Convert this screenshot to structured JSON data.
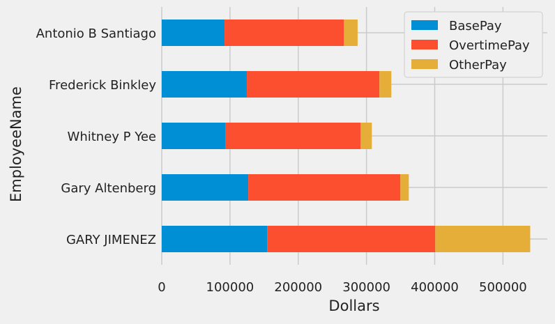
{
  "chart_data": {
    "type": "bar",
    "orientation": "horizontal",
    "stacked": true,
    "categories": [
      "Antonio B Santiago",
      "Frederick Binkley",
      "Whitney P Yee",
      "Gary Altenberg",
      "GARY JIMENEZ"
    ],
    "series": [
      {
        "name": "BasePay",
        "color": "#008fd5",
        "values": [
          92000,
          124700,
          93000,
          126800,
          154400
        ]
      },
      {
        "name": "OvertimePay",
        "color": "#fc4f30",
        "values": [
          175000,
          194300,
          198400,
          222900,
          246400
        ]
      },
      {
        "name": "OtherPay",
        "color": "#e5ae38",
        "values": [
          20000,
          17400,
          16400,
          12300,
          139100
        ]
      }
    ],
    "xlabel": "Dollars",
    "ylabel": "EmployeeName",
    "xlim": [
      0,
      565000
    ],
    "xticks": [
      0,
      100000,
      200000,
      300000,
      400000,
      500000
    ],
    "xtick_labels": [
      "0",
      "100000",
      "200000",
      "300000",
      "400000",
      "500000"
    ],
    "grid": true,
    "legend_position": "top-right"
  }
}
